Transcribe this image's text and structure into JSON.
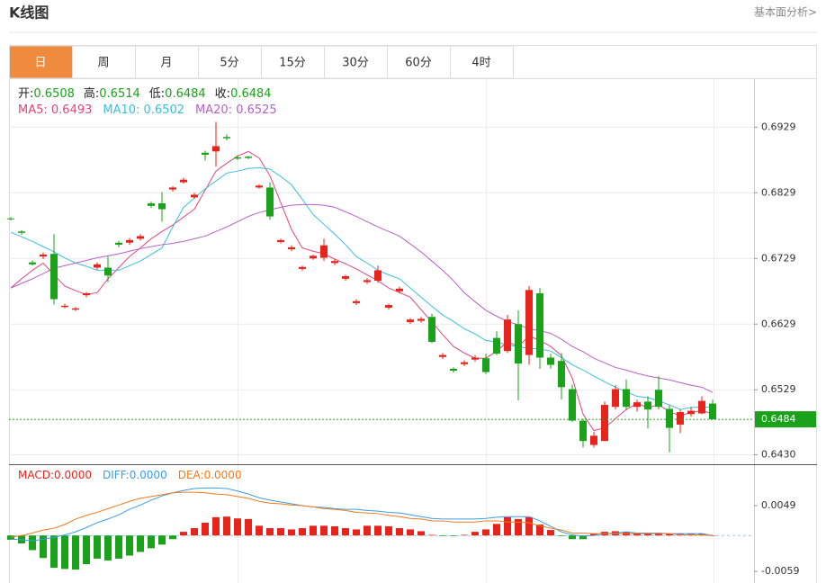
{
  "header": {
    "title": "K线图",
    "link": "基本面分析>"
  },
  "tabs": [
    "日",
    "周",
    "月",
    "5分",
    "15分",
    "30分",
    "60分",
    "4时"
  ],
  "active_tab": 0,
  "chart_data": [
    {
      "type": "candlestick",
      "readout": [
        {
          "label": "开:",
          "value": "0.6508"
        },
        {
          "label": "高:",
          "value": "0.6514"
        },
        {
          "label": "低:",
          "value": "0.6484"
        },
        {
          "label": "收:",
          "value": "0.6484"
        }
      ],
      "up_color": "#e8231b",
      "down_color": "#1aa21a",
      "open": [
        0.679,
        0.677,
        0.6723,
        0.6732,
        0.6736,
        0.6655,
        0.6651,
        0.6673,
        0.6715,
        0.6715,
        0.6753,
        0.6753,
        0.6759,
        0.6813,
        0.6813,
        0.6834,
        0.6845,
        0.6822,
        0.689,
        0.6892,
        0.6914,
        0.6883,
        0.6884,
        0.6837,
        0.6837,
        0.6754,
        0.6743,
        0.6713,
        0.6729,
        0.673,
        0.6722,
        0.6698,
        0.6661,
        0.6693,
        0.6695,
        0.6654,
        0.6679,
        0.6632,
        0.6634,
        0.664,
        0.6579,
        0.6561,
        0.6568,
        0.6575,
        0.6577,
        0.6608,
        0.6588,
        0.6629,
        0.6582,
        0.6676,
        0.6578,
        0.6573,
        0.653,
        0.6482,
        0.6445,
        0.6451,
        0.6503,
        0.653,
        0.6503,
        0.6511,
        0.6529,
        0.65,
        0.6476,
        0.6492,
        0.6493,
        0.6508
      ],
      "high": [
        0.6792,
        0.6772,
        0.6726,
        0.6738,
        0.6766,
        0.666,
        0.6655,
        0.6678,
        0.6723,
        0.6732,
        0.6756,
        0.676,
        0.6766,
        0.6816,
        0.683,
        0.6839,
        0.6852,
        0.6829,
        0.6893,
        0.6937,
        0.6918,
        0.6886,
        0.6885,
        0.6842,
        0.6845,
        0.6759,
        0.6749,
        0.6718,
        0.6735,
        0.6759,
        0.6728,
        0.6704,
        0.6667,
        0.6699,
        0.6718,
        0.666,
        0.6686,
        0.6638,
        0.664,
        0.6645,
        0.6585,
        0.6563,
        0.6574,
        0.6582,
        0.6584,
        0.6618,
        0.6643,
        0.665,
        0.6687,
        0.6684,
        0.6584,
        0.6585,
        0.6537,
        0.6485,
        0.6465,
        0.6511,
        0.6536,
        0.6545,
        0.6514,
        0.6519,
        0.655,
        0.6506,
        0.6499,
        0.6503,
        0.6519,
        0.6514
      ],
      "low": [
        0.6787,
        0.6765,
        0.6718,
        0.6728,
        0.6659,
        0.6653,
        0.6649,
        0.667,
        0.6712,
        0.6693,
        0.6746,
        0.675,
        0.6756,
        0.6806,
        0.6785,
        0.6831,
        0.6843,
        0.682,
        0.6878,
        0.6869,
        0.6909,
        0.6879,
        0.688,
        0.6835,
        0.6788,
        0.6752,
        0.674,
        0.671,
        0.6727,
        0.6725,
        0.6719,
        0.6695,
        0.6658,
        0.669,
        0.6692,
        0.6651,
        0.6676,
        0.6629,
        0.6631,
        0.66,
        0.6576,
        0.6555,
        0.6565,
        0.6572,
        0.6553,
        0.6582,
        0.6585,
        0.6513,
        0.6567,
        0.6561,
        0.6561,
        0.6514,
        0.648,
        0.6441,
        0.6441,
        0.6451,
        0.6499,
        0.6498,
        0.6496,
        0.647,
        0.6499,
        0.6434,
        0.6463,
        0.6488,
        0.6492,
        0.6484
      ],
      "close": [
        0.6789,
        0.6768,
        0.672,
        0.6735,
        0.6667,
        0.6657,
        0.6653,
        0.6676,
        0.672,
        0.6703,
        0.675,
        0.6757,
        0.6763,
        0.6809,
        0.6804,
        0.6837,
        0.6849,
        0.6826,
        0.6887,
        0.69,
        0.6912,
        0.6881,
        0.6882,
        0.684,
        0.6793,
        0.6757,
        0.6746,
        0.6716,
        0.6733,
        0.6749,
        0.6725,
        0.6702,
        0.6664,
        0.6696,
        0.6711,
        0.6658,
        0.6683,
        0.6636,
        0.6637,
        0.6602,
        0.6582,
        0.6558,
        0.6571,
        0.6578,
        0.6556,
        0.6584,
        0.6636,
        0.6569,
        0.6681,
        0.6578,
        0.6567,
        0.6533,
        0.6482,
        0.6451,
        0.6459,
        0.6506,
        0.653,
        0.6503,
        0.651,
        0.6499,
        0.6503,
        0.6471,
        0.6495,
        0.6497,
        0.6512,
        0.6484
      ],
      "series": [
        {
          "legend": "MA5: 0.6493",
          "color": "#e0467c",
          "values": [
            0.6684,
            0.6698,
            0.6711,
            0.6722,
            0.6704,
            0.6687,
            0.668,
            0.6674,
            0.6677,
            0.6698,
            0.6715,
            0.6732,
            0.6745,
            0.6759,
            0.677,
            0.678,
            0.6792,
            0.6804,
            0.6833,
            0.6862,
            0.6874,
            0.6885,
            0.6892,
            0.6882,
            0.6855,
            0.6814,
            0.6773,
            0.6745,
            0.674,
            0.6736,
            0.6728,
            0.6721,
            0.6713,
            0.6704,
            0.6695,
            0.6684,
            0.6677,
            0.667,
            0.6651,
            0.6632,
            0.6613,
            0.6595,
            0.6585,
            0.6577,
            0.6577,
            0.6588,
            0.6602,
            0.6595,
            0.6611,
            0.6604,
            0.6595,
            0.6581,
            0.6547,
            0.6492,
            0.6467,
            0.6471,
            0.6485,
            0.6499,
            0.6508,
            0.6502,
            0.6506,
            0.6496,
            0.6489,
            0.6495,
            0.6497,
            0.6493
          ]
        },
        {
          "legend": "MA10: 0.6502",
          "color": "#3cc0d8",
          "values": [
            0.6769,
            0.6762,
            0.6755,
            0.6747,
            0.6739,
            0.673,
            0.6722,
            0.6717,
            0.6711,
            0.6711,
            0.6711,
            0.6718,
            0.6725,
            0.6735,
            0.6745,
            0.6777,
            0.6807,
            0.6821,
            0.6835,
            0.6847,
            0.6859,
            0.6862,
            0.6866,
            0.6867,
            0.6865,
            0.6854,
            0.6841,
            0.6819,
            0.6796,
            0.6781,
            0.6766,
            0.675,
            0.6732,
            0.6722,
            0.6711,
            0.6704,
            0.6698,
            0.6684,
            0.667,
            0.6656,
            0.6643,
            0.6633,
            0.6622,
            0.6614,
            0.6604,
            0.6602,
            0.6597,
            0.6595,
            0.6592,
            0.6591,
            0.6588,
            0.6578,
            0.6567,
            0.6559,
            0.655,
            0.6541,
            0.6533,
            0.6526,
            0.6519,
            0.6517,
            0.6512,
            0.6506,
            0.6499,
            0.6502,
            0.6503,
            0.6502
          ]
        },
        {
          "legend": "MA20: 0.6525",
          "color": "#b660c8",
          "values": [
            0.6684,
            0.6691,
            0.6698,
            0.6706,
            0.6714,
            0.6718,
            0.6722,
            0.6726,
            0.673,
            0.6733,
            0.6736,
            0.674,
            0.6744,
            0.6747,
            0.675,
            0.6752,
            0.6755,
            0.6759,
            0.6763,
            0.677,
            0.6777,
            0.6785,
            0.6793,
            0.6799,
            0.6803,
            0.6807,
            0.681,
            0.6811,
            0.6811,
            0.681,
            0.6807,
            0.68,
            0.6793,
            0.6785,
            0.6777,
            0.677,
            0.6763,
            0.6751,
            0.6739,
            0.6725,
            0.6711,
            0.6695,
            0.6677,
            0.6663,
            0.665,
            0.6641,
            0.6633,
            0.6628,
            0.6622,
            0.6619,
            0.6615,
            0.6606,
            0.6595,
            0.6587,
            0.6577,
            0.657,
            0.6563,
            0.6559,
            0.6554,
            0.655,
            0.6547,
            0.6544,
            0.654,
            0.6536,
            0.6533,
            0.6525
          ]
        }
      ],
      "ylim": [
        0.6417,
        0.7002
      ],
      "yticks": [
        0.6929,
        0.6829,
        0.6729,
        0.6629,
        0.6529,
        {
          "value": 0.643,
          "label": "0.6430"
        }
      ],
      "grid": true,
      "last_price": 0.6484,
      "last_color": "#1aa21a"
    },
    {
      "type": "macd",
      "legends": [
        {
          "text": "MACD:0.0000",
          "color": "#e8231b"
        },
        {
          "text": "DIFF:0.0000",
          "color": "#3a9ee6"
        },
        {
          "text": "DEA:0.0000",
          "color": "#f07b1d"
        }
      ],
      "histogram": [
        -0.0007,
        -0.0013,
        -0.0024,
        -0.0037,
        -0.0053,
        -0.0055,
        -0.0056,
        -0.0047,
        -0.0038,
        -0.0041,
        -0.0038,
        -0.0033,
        -0.0027,
        -0.0021,
        -0.0015,
        -0.0006,
        0.0006,
        0.0012,
        0.0021,
        0.003,
        0.0031,
        0.0028,
        0.0027,
        0.0016,
        0.0012,
        0.0012,
        0.001,
        0.0012,
        0.0016,
        0.0016,
        0.0015,
        0.0012,
        0.001,
        0.0016,
        0.0016,
        0.0015,
        0.0012,
        0.001,
        0.0007,
        0.0001,
        -0.0001,
        -0.0001,
        0.0001,
        0.0006,
        0.001,
        0.0019,
        0.003,
        0.0027,
        0.003,
        0.0018,
        0.0009,
        -0.0001,
        -0.0006,
        -0.0006,
        0.0003,
        0.0006,
        0.0007,
        0.0006,
        0.0004,
        0.0003,
        0.0004,
        0.0003,
        0.0003,
        0.0003,
        0.0003,
        0.0
      ],
      "up_color": "#e8231b",
      "down_color": "#1aa21a",
      "diff": [
        -0.0006,
        -0.0007,
        -0.0009,
        -0.0006,
        -0.0003,
        0.0001,
        0.0006,
        0.0013,
        0.0021,
        0.0027,
        0.0034,
        0.0043,
        0.005,
        0.0058,
        0.0065,
        0.007,
        0.0074,
        0.0077,
        0.0078,
        0.0078,
        0.0077,
        0.0073,
        0.0068,
        0.0062,
        0.0058,
        0.0055,
        0.0052,
        0.0049,
        0.0047,
        0.0046,
        0.0044,
        0.0043,
        0.0043,
        0.0041,
        0.004,
        0.0038,
        0.0037,
        0.0034,
        0.0031,
        0.0028,
        0.0027,
        0.0027,
        0.0027,
        0.0027,
        0.0028,
        0.003,
        0.0031,
        0.0031,
        0.0031,
        0.0024,
        0.0015,
        0.0006,
        0.0001,
        -0.0001,
        0.0,
        0.0003,
        0.0004,
        0.0006,
        0.0004,
        0.0004,
        0.0004,
        0.0003,
        0.0003,
        0.0003,
        0.0003,
        0.0
      ],
      "dea": [
        -0.0003,
        0.0,
        0.0004,
        0.0009,
        0.0012,
        0.0018,
        0.0027,
        0.0033,
        0.0038,
        0.0044,
        0.005,
        0.0056,
        0.0061,
        0.0064,
        0.0067,
        0.007,
        0.0071,
        0.0071,
        0.007,
        0.0068,
        0.0067,
        0.0064,
        0.0061,
        0.0056,
        0.0053,
        0.0052,
        0.005,
        0.0049,
        0.0047,
        0.0044,
        0.0043,
        0.0041,
        0.0038,
        0.0037,
        0.0036,
        0.0033,
        0.0031,
        0.0028,
        0.0027,
        0.0024,
        0.0024,
        0.0022,
        0.0022,
        0.0022,
        0.0024,
        0.0024,
        0.0022,
        0.0022,
        0.0021,
        0.0016,
        0.0012,
        0.0009,
        0.0004,
        0.0004,
        0.0003,
        0.0003,
        0.0003,
        0.0003,
        0.0003,
        0.0003,
        0.0003,
        0.0003,
        0.0001,
        0.0001,
        0.0001,
        0.0
      ],
      "diff_color": "#3a9ee6",
      "dea_color": "#f07b1d",
      "ylim": [
        -0.0078,
        0.0114
      ],
      "yticks": [
        0.0049,
        -0.0059
      ]
    }
  ]
}
